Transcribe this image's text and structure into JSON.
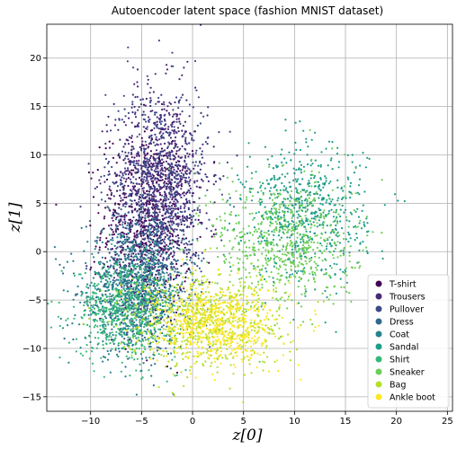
{
  "chart_data": {
    "type": "scatter",
    "title": "Autoencoder latent space (fashion MNIST dataset)",
    "xlabel": "z[0]",
    "ylabel": "z[1]",
    "xlim": [
      -14.3,
      25.5
    ],
    "ylim": [
      -16.5,
      23.5
    ],
    "xticks": [
      -10,
      -5,
      0,
      5,
      10,
      15,
      20,
      25
    ],
    "yticks": [
      -15,
      -10,
      -5,
      0,
      5,
      10,
      15,
      20
    ],
    "grid": true,
    "legend_position": "lower-right",
    "series": [
      {
        "name": "T-shirt",
        "color": "#440154",
        "center": [
          -4.5,
          2.5
        ],
        "spread": [
          2.2,
          5.0
        ],
        "count": 700
      },
      {
        "name": "Trousers",
        "color": "#482878",
        "center": [
          -3.0,
          8.0
        ],
        "spread": [
          2.3,
          4.5
        ],
        "count": 700
      },
      {
        "name": "Pullover",
        "color": "#3e4989",
        "center": [
          -3.5,
          6.0
        ],
        "spread": [
          2.5,
          5.5
        ],
        "count": 700
      },
      {
        "name": "Dress",
        "color": "#31688e",
        "center": [
          -5.0,
          -3.0
        ],
        "spread": [
          2.5,
          3.5
        ],
        "count": 600
      },
      {
        "name": "Coat",
        "color": "#26828e",
        "center": [
          -6.0,
          -4.5
        ],
        "spread": [
          2.5,
          3.0
        ],
        "count": 600
      },
      {
        "name": "Sandal",
        "color": "#1f9e89",
        "center": [
          11.0,
          4.0
        ],
        "spread": [
          3.0,
          3.5
        ],
        "count": 650
      },
      {
        "name": "Shirt",
        "color": "#35b779",
        "center": [
          -6.5,
          -6.0
        ],
        "spread": [
          2.5,
          2.5
        ],
        "count": 600
      },
      {
        "name": "Sneaker",
        "color": "#6ece58",
        "center": [
          9.0,
          1.0
        ],
        "spread": [
          3.5,
          3.5
        ],
        "count": 650
      },
      {
        "name": "Bag",
        "color": "#b5de2b",
        "center": [
          1.0,
          -7.0
        ],
        "spread": [
          4.0,
          2.5
        ],
        "count": 650
      },
      {
        "name": "Ankle boot",
        "color": "#fde725",
        "center": [
          2.5,
          -7.5
        ],
        "spread": [
          3.0,
          2.0
        ],
        "count": 650
      }
    ]
  }
}
